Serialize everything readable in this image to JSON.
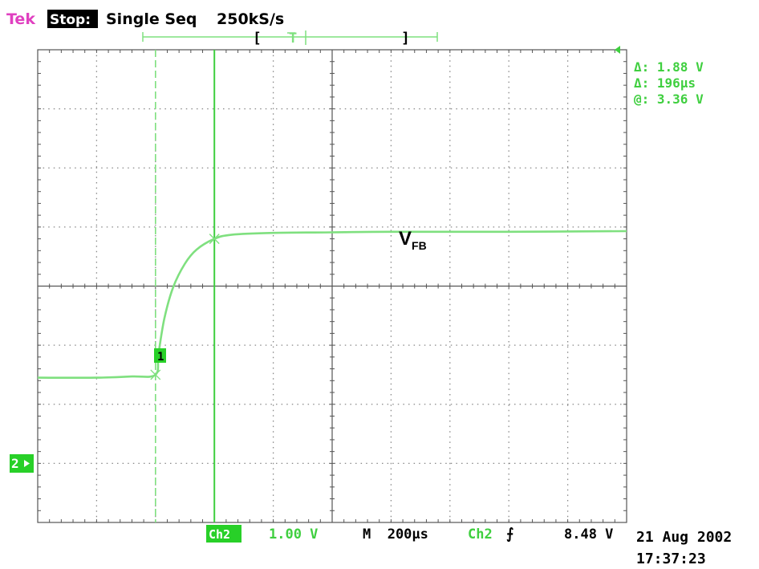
{
  "header": {
    "brand": "Tek",
    "state": "Stop:",
    "mode": "Single Seq",
    "rate": "250kS/s"
  },
  "readouts": {
    "delta_v": "Δ: 1.88 V",
    "delta_t": "Δ: 196µs",
    "at_v": "@: 3.36 V"
  },
  "markers": {
    "channel_ground": "2",
    "cursor_one": "1"
  },
  "footer": {
    "channel": "Ch2",
    "volts_div": "1.00 V",
    "timebase": "M  200µs",
    "trigger_channel": "Ch2",
    "trigger_slope": "⨍",
    "trigger_level": "8.48 V",
    "date": "21 Aug 2002",
    "time": "17:37:23"
  },
  "colors": {
    "trace": "#7fe07f",
    "trace_dark": "#3fcf3f",
    "grid": "#555555",
    "brand": "#e040c0",
    "label_bg": "#28d028"
  },
  "chart_data": {
    "type": "line",
    "title": "",
    "grid": true,
    "x_divisions": 10,
    "y_divisions": 8,
    "x_per_div": "200µs",
    "y_per_div": "1.00 V",
    "x_range_div": [
      0,
      10
    ],
    "y_range_div": [
      0,
      8
    ],
    "series": [
      {
        "name": "VFB",
        "x_div": [
          0,
          1.0,
          1.6,
          2.0,
          2.05,
          2.15,
          2.3,
          2.5,
          2.7,
          3.0,
          3.3,
          4.0,
          5.0,
          6.0,
          8.0,
          10.0
        ],
        "y_div": [
          2.45,
          2.45,
          2.47,
          2.5,
          2.85,
          3.45,
          3.98,
          4.38,
          4.62,
          4.8,
          4.87,
          4.9,
          4.91,
          4.92,
          4.92,
          4.93
        ]
      }
    ],
    "cursors": {
      "vertical_div": [
        2.0,
        3.0
      ]
    },
    "trace_label": "V",
    "trace_label_sub": "FB"
  }
}
